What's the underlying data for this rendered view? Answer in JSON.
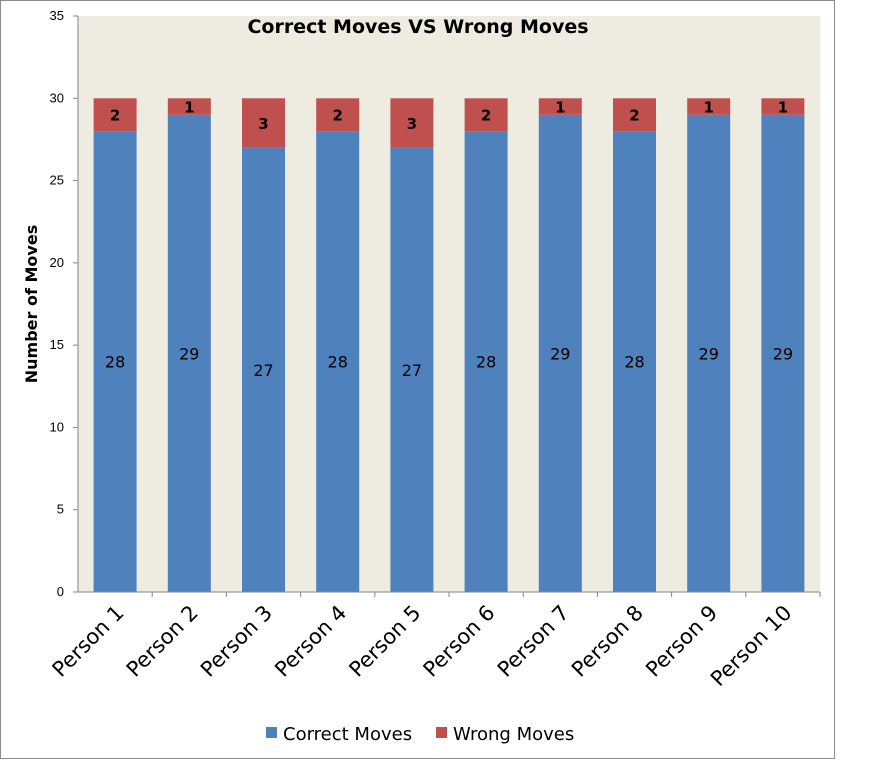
{
  "chart_data": {
    "type": "bar",
    "stacked": true,
    "title": "Correct Moves VS Wrong Moves",
    "xlabel": "",
    "ylabel": "Number of Moves",
    "ylim": [
      0,
      35
    ],
    "yticks": [
      0,
      5,
      10,
      15,
      20,
      25,
      30,
      35
    ],
    "grid": false,
    "legend_position": "bottom",
    "categories": [
      "Person 1",
      "Person 2",
      "Person 3",
      "Person 4",
      "Person 5",
      "Person 6",
      "Person 7",
      "Person 8",
      "Person 9",
      "Person 10"
    ],
    "series": [
      {
        "name": "Correct Moves",
        "color": "#4F81BD",
        "values": [
          28,
          29,
          27,
          28,
          27,
          28,
          29,
          28,
          29,
          29
        ]
      },
      {
        "name": "Wrong Moves",
        "color": "#C0504D",
        "values": [
          2,
          1,
          3,
          2,
          3,
          2,
          1,
          2,
          1,
          1
        ]
      }
    ],
    "plot_background": "#EEECE1"
  }
}
